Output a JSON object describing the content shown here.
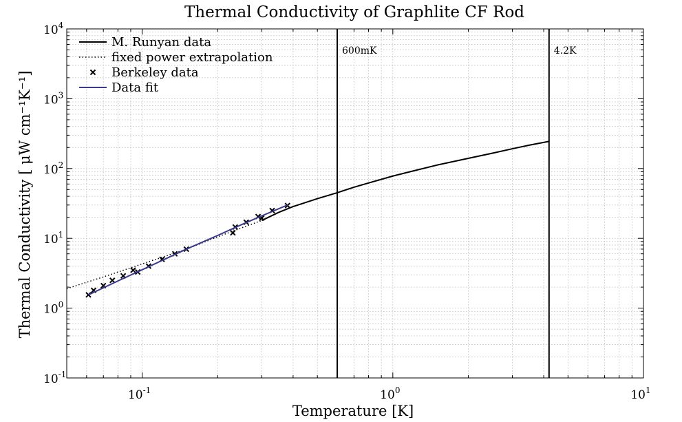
{
  "chart_data": {
    "type": "line",
    "title": "Thermal Conductivity of Graphlite CF Rod",
    "xlabel": "Temperature [K]",
    "ylabel": "Thermal Conductivity [ μW cm⁻¹K⁻¹]",
    "x_scale": "log",
    "y_scale": "log",
    "xlim": [
      0.05,
      10
    ],
    "ylim": [
      0.1,
      10000
    ],
    "grid": true,
    "legend_position": "top-left",
    "x_ticks": [
      {
        "value": 0.1,
        "base": "10",
        "exp": "-1"
      },
      {
        "value": 1,
        "base": "10",
        "exp": "0"
      },
      {
        "value": 10,
        "base": "10",
        "exp": "1"
      }
    ],
    "y_ticks": [
      {
        "value": 0.1,
        "base": "10",
        "exp": "-1"
      },
      {
        "value": 1,
        "base": "10",
        "exp": "0"
      },
      {
        "value": 10,
        "base": "10",
        "exp": "1"
      },
      {
        "value": 100,
        "base": "10",
        "exp": "2"
      },
      {
        "value": 1000,
        "base": "10",
        "exp": "3"
      },
      {
        "value": 10000,
        "base": "10",
        "exp": "4"
      }
    ],
    "series": [
      {
        "name": "M. Runyan data",
        "style": "solid",
        "color": "#000000",
        "x": [
          0.3,
          0.35,
          0.4,
          0.5,
          0.6,
          0.7,
          0.8,
          1.0,
          1.2,
          1.5,
          2.0,
          2.5,
          3.0,
          3.5,
          4.2
        ],
        "y": [
          18,
          23.5,
          28.5,
          37,
          45,
          54,
          62,
          78,
          92,
          112,
          140,
          166,
          192,
          216,
          245
        ]
      },
      {
        "name": "fixed power extrapolation",
        "style": "dotted",
        "color": "#000000",
        "x": [
          0.05,
          0.07,
          0.1,
          0.15,
          0.2,
          0.25,
          0.3
        ],
        "y": [
          1.9,
          2.8,
          4.3,
          7.0,
          10.5,
          14.2,
          18
        ]
      },
      {
        "name": "Berkeley data",
        "style": "markers",
        "marker": "x",
        "color": "#000000",
        "x": [
          0.061,
          0.064,
          0.07,
          0.076,
          0.084,
          0.092,
          0.096,
          0.106,
          0.12,
          0.135,
          0.15,
          0.23,
          0.235,
          0.26,
          0.29,
          0.3,
          0.33,
          0.38
        ],
        "y": [
          1.55,
          1.8,
          2.1,
          2.5,
          2.9,
          3.5,
          3.3,
          4.0,
          5.0,
          6.0,
          7.0,
          12.0,
          14.5,
          17.0,
          20.5,
          19.5,
          25.0,
          29.5
        ]
      },
      {
        "name": "Data fit",
        "style": "solid",
        "color": "#3a3a8c",
        "x": [
          0.061,
          0.08,
          0.1,
          0.15,
          0.2,
          0.25,
          0.3,
          0.38
        ],
        "y": [
          1.55,
          2.45,
          3.55,
          7.0,
          11.0,
          15.8,
          21.0,
          30.0
        ]
      }
    ],
    "annotations": [
      {
        "x": 0.6,
        "label": "600mK"
      },
      {
        "x": 4.2,
        "label": "4.2K"
      }
    ],
    "colors": {
      "axes": "#000000",
      "grid": "#b0b0b0",
      "fit": "#3a3a8c"
    }
  }
}
